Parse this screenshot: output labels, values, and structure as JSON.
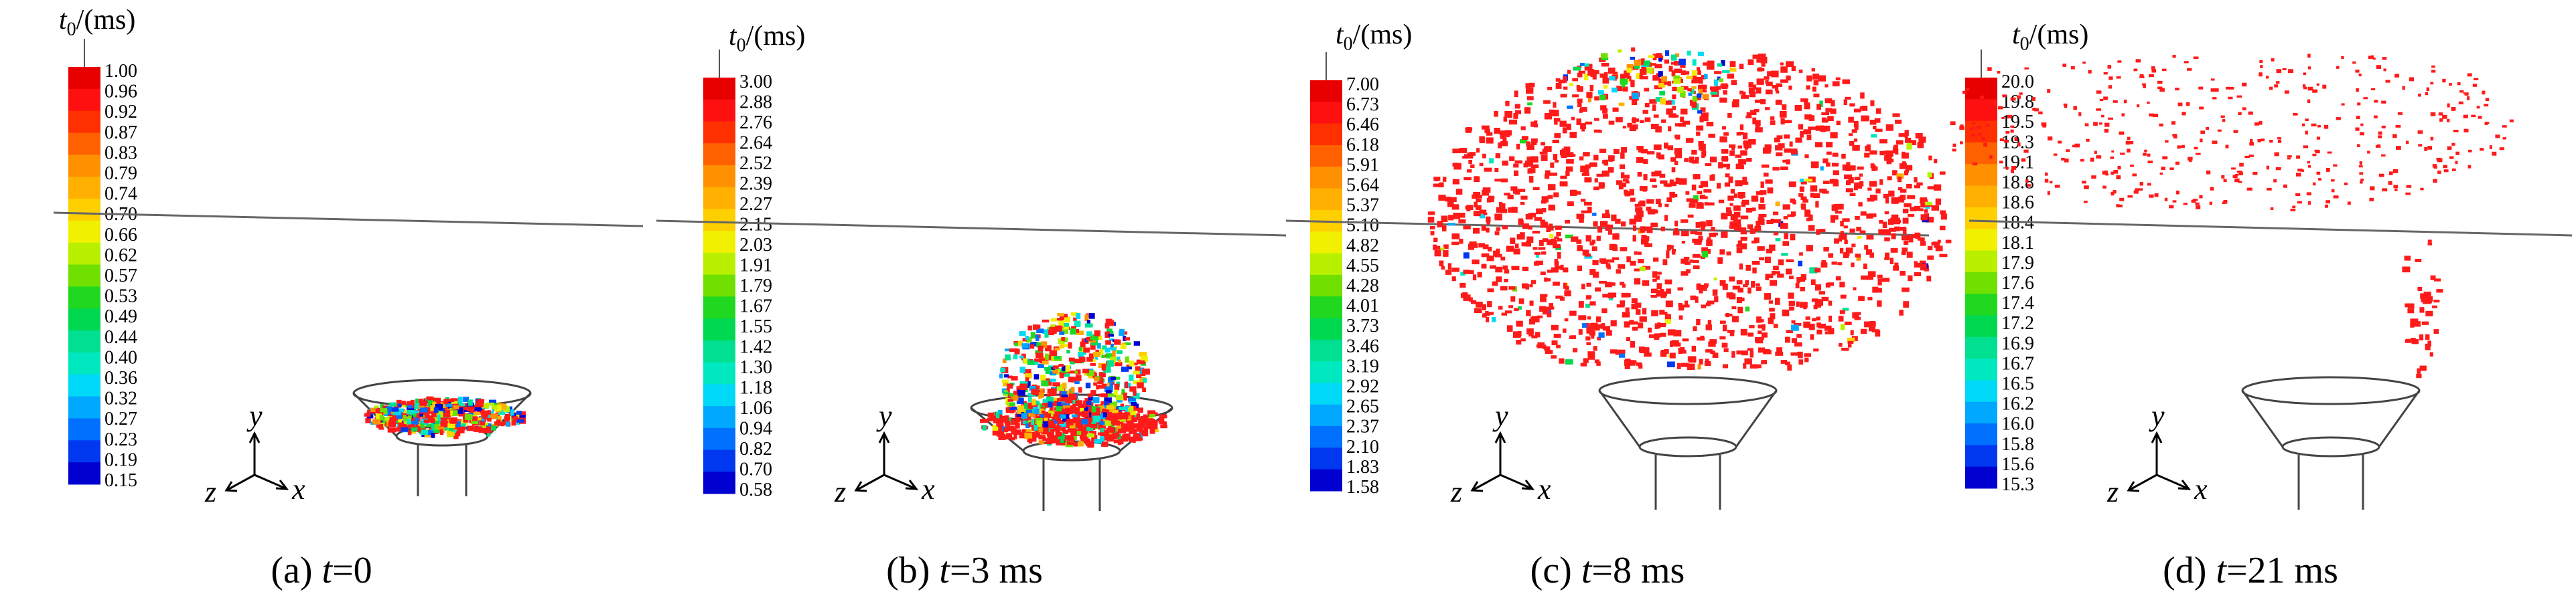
{
  "colormap": [
    "#0000d0",
    "#0038f0",
    "#0070ff",
    "#00a8ff",
    "#00d8f8",
    "#00e8c0",
    "#00e090",
    "#00d850",
    "#20d820",
    "#70e000",
    "#b8f000",
    "#f0f000",
    "#ffd000",
    "#ffb000",
    "#ff9000",
    "#ff6000",
    "#ff3000",
    "#ff1010",
    "#e80000"
  ],
  "particle_color": "#ff1a1a",
  "panels": [
    {
      "id": "a",
      "unit_var": "t",
      "unit_sub": "0",
      "unit_rest": "/(ms)",
      "ticks": [
        "1.00",
        "0.96",
        "0.92",
        "0.87",
        "0.83",
        "0.79",
        "0.74",
        "0.70",
        "0.66",
        "0.62",
        "0.57",
        "0.53",
        "0.49",
        "0.44",
        "0.40",
        "0.36",
        "0.32",
        "0.27",
        "0.23",
        "0.19",
        "0.15"
      ],
      "axes": {
        "y": "y",
        "z": "z",
        "x": "x"
      },
      "caption": {
        "prefix": "(a) ",
        "var": "t",
        "rest": "=0"
      }
    },
    {
      "id": "b",
      "unit_var": "t",
      "unit_sub": "0",
      "unit_rest": "/(ms)",
      "ticks": [
        "3.00",
        "2.88",
        "2.76",
        "2.64",
        "2.52",
        "2.39",
        "2.27",
        "2.15",
        "2.03",
        "1.91",
        "1.79",
        "1.67",
        "1.55",
        "1.42",
        "1.30",
        "1.18",
        "1.06",
        "0.94",
        "0.82",
        "0.70",
        "0.58"
      ],
      "axes": {
        "y": "y",
        "z": "z",
        "x": "x"
      },
      "caption": {
        "prefix": "(b) ",
        "var": "t",
        "rest": "=3 ms"
      }
    },
    {
      "id": "c",
      "unit_var": "t",
      "unit_sub": "0",
      "unit_rest": "/(ms)",
      "ticks": [
        "7.00",
        "6.73",
        "6.46",
        "6.18",
        "5.91",
        "5.64",
        "5.37",
        "5.10",
        "4.82",
        "4.55",
        "4.28",
        "4.01",
        "3.73",
        "3.46",
        "3.19",
        "2.92",
        "2.65",
        "2.37",
        "2.10",
        "1.83",
        "1.58"
      ],
      "axes": {
        "y": "y",
        "z": "z",
        "x": "x"
      },
      "caption": {
        "prefix": "(c) ",
        "var": "t",
        "rest": "=8 ms"
      }
    },
    {
      "id": "d",
      "unit_var": "t",
      "unit_sub": "0",
      "unit_rest": "/(ms)",
      "ticks": [
        "20.0",
        "19.8",
        "19.5",
        "19.3",
        "19.1",
        "18.8",
        "18.6",
        "18.4",
        "18.1",
        "17.9",
        "17.6",
        "17.4",
        "17.2",
        "16.9",
        "16.7",
        "16.5",
        "16.2",
        "16.0",
        "15.8",
        "15.6",
        "15.3"
      ],
      "axes": {
        "y": "y",
        "z": "z",
        "x": "x"
      },
      "caption": {
        "prefix": "(d) ",
        "var": "t",
        "rest": "=21 ms"
      }
    }
  ]
}
